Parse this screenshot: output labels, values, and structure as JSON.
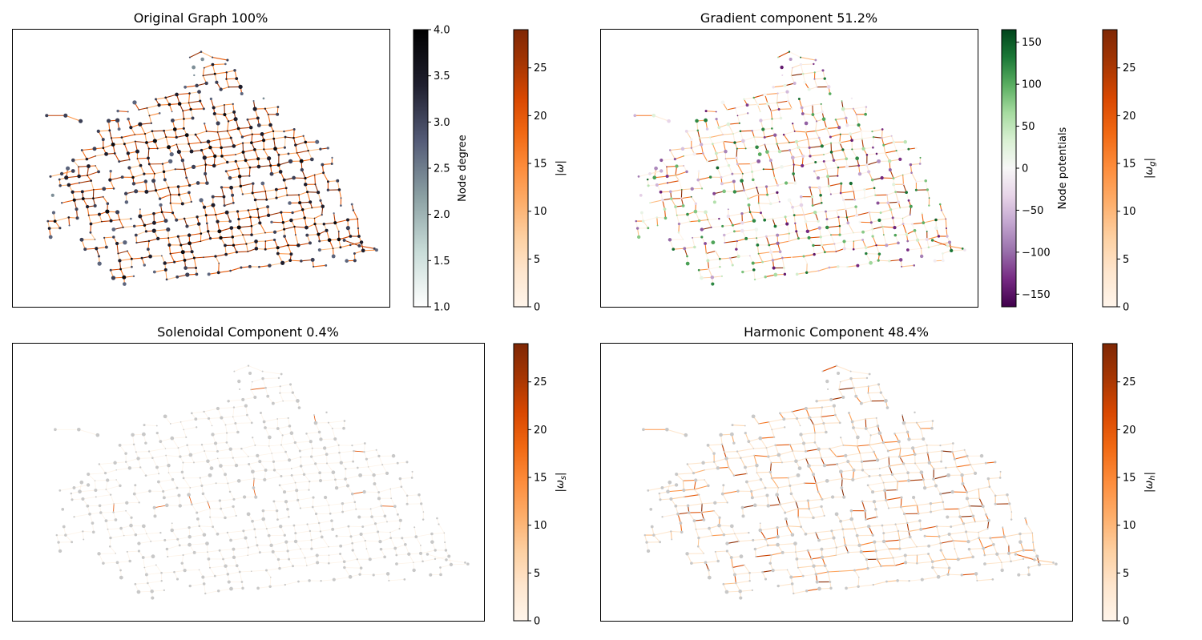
{
  "colors": {
    "cmap_oranges": [
      "#fff5eb",
      "#fee6ce",
      "#fdd0a2",
      "#fdae6b",
      "#fd8d3c",
      "#f16913",
      "#d94801",
      "#a63603",
      "#7f2704"
    ],
    "cmap_bone_r": [
      "#ffffff",
      "#c8dcd8",
      "#8a9fa2",
      "#545b77",
      "#1f1f2e",
      "#000000"
    ],
    "cmap_prgn": [
      "#40004b",
      "#762a83",
      "#9970ab",
      "#c2a5cf",
      "#e7d4e8",
      "#f7f7f7",
      "#d9f0d3",
      "#a6dba0",
      "#5aae61",
      "#1b7837",
      "#00441b"
    ],
    "node_gray": "#c8c8c8",
    "node_dark": "#3a4060"
  },
  "chart_data": [
    {
      "type": "scatter",
      "panel": "original",
      "title": "Original Graph 100%",
      "description": "road network graph; edges colored by |ω|, nodes colored by node degree",
      "colorbars": [
        {
          "id": "degree",
          "label": "Node degree",
          "ylim": [
            1.0,
            4.0
          ],
          "ticks": [
            "1.0",
            "1.5",
            "2.0",
            "2.5",
            "3.0",
            "3.5",
            "4.0"
          ],
          "tick_values": [
            1.0,
            1.5,
            2.0,
            2.5,
            3.0,
            3.5,
            4.0
          ]
        },
        {
          "id": "omega",
          "label": "|ω|",
          "ylim": [
            0,
            29
          ],
          "ticks": [
            "0",
            "5",
            "10",
            "15",
            "20",
            "25"
          ],
          "tick_values": [
            0,
            5,
            10,
            15,
            20,
            25
          ]
        }
      ]
    },
    {
      "type": "scatter",
      "panel": "gradient",
      "title": "Gradient component 51.2%",
      "description": "edges colored by |ω_g|, nodes colored by node potentials",
      "colorbars": [
        {
          "id": "potentials",
          "label": "Node potentials",
          "ylim": [
            -165,
            165
          ],
          "ticks": [
            "−150",
            "−100",
            "−50",
            "0",
            "50",
            "100",
            "150"
          ],
          "tick_values": [
            -150,
            -100,
            -50,
            0,
            50,
            100,
            150
          ]
        },
        {
          "id": "omega_g",
          "label": "|ω",
          "label_sub": "g",
          "label_end": "|",
          "ylim": [
            0,
            29
          ],
          "ticks": [
            "0",
            "5",
            "10",
            "15",
            "20",
            "25"
          ],
          "tick_values": [
            0,
            5,
            10,
            15,
            20,
            25
          ]
        }
      ]
    },
    {
      "type": "scatter",
      "panel": "solenoidal",
      "title": "Solenoidal Component 0.4%",
      "description": "edges colored by |ω_s|, nodes gray",
      "colorbars": [
        {
          "id": "omega_s",
          "label": "|ω",
          "label_sub": "s",
          "label_end": "|",
          "ylim": [
            0,
            29
          ],
          "ticks": [
            "0",
            "5",
            "10",
            "15",
            "20",
            "25"
          ],
          "tick_values": [
            0,
            5,
            10,
            15,
            20,
            25
          ]
        }
      ]
    },
    {
      "type": "scatter",
      "panel": "harmonic",
      "title": "Harmonic Component 48.4%",
      "description": "edges colored by |ω_h|, nodes gray",
      "colorbars": [
        {
          "id": "omega_h",
          "label": "|ω",
          "label_sub": "h",
          "label_end": "|",
          "ylim": [
            0,
            29
          ],
          "ticks": [
            "0",
            "5",
            "10",
            "15",
            "20",
            "25"
          ],
          "tick_values": [
            0,
            5,
            10,
            15,
            20,
            25
          ]
        }
      ]
    }
  ]
}
